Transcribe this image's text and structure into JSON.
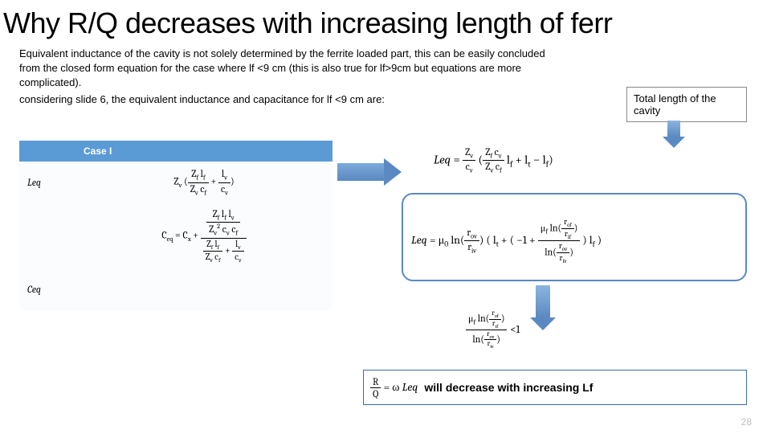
{
  "title": "Why R/Q decreases with increasing length of ferr",
  "para1": "Equivalent inductance of the cavity is not solely determined by the  ferrite loaded part, this can be easily concluded from the closed form equation for the case where lf <9 cm (this is also true for lf>9cm but  equations are more complicated).",
  "para2": "considering slide 6, the  equivalent inductance and capacitance for lf <9 cm are:",
  "table": {
    "header": "Case I",
    "rows": [
      {
        "label": "Leq"
      },
      {
        "label": ""
      },
      {
        "label": "Ceq"
      }
    ]
  },
  "totalBox": "Total length of the cavity",
  "ratio_lt": "<1",
  "conclusion": "will decrease with increasing Lf",
  "pagenum": "28",
  "colors": {
    "headerBlue": "#5b9bd5",
    "arrowBlue": "#5b89c1",
    "borderBlue": "#3b6da3",
    "grayText": "#bfbfbf"
  }
}
